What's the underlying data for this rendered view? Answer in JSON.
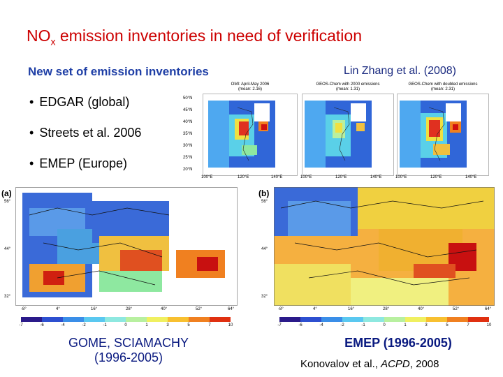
{
  "title": {
    "prefix": "NO",
    "sub": "x",
    "rest": " emission inventories in need of verification"
  },
  "subtitle": "New set of emission inventories",
  "citation": "Lin Zhang et al. (2008)",
  "bullets": [
    "EDGAR (global)",
    "Streets et al. 2006",
    "EMEP (Europe)"
  ],
  "bullet_symbol": "•",
  "top_maps": [
    {
      "title_line1": "OMI: April-May 2006",
      "title_line2": "(mean: 2.16)"
    },
    {
      "title_line1": "GEOS-Chem with 2000 emissions",
      "title_line2": "(mean: 1.31)"
    },
    {
      "title_line1": "GEOS-Chem with doubled emissions",
      "title_line2": "(mean: 2.31)"
    }
  ],
  "top_lat_labels": [
    "50°N",
    "45°N",
    "40°N",
    "35°N",
    "30°N",
    "25°N",
    "20°N"
  ],
  "top_lon_labels": [
    "100°E",
    "120°E",
    "140°E"
  ],
  "panel_a": {
    "label": "(a)",
    "lat_labels": [
      "56°",
      "44°",
      "32°"
    ],
    "lon_labels": [
      "-8°",
      "4°",
      "16°",
      "28°",
      "40°",
      "52°",
      "64°"
    ]
  },
  "panel_b": {
    "label": "(b)",
    "lat_labels": [
      "56°",
      "44°",
      "32°"
    ],
    "lon_labels": [
      "-8°",
      "4°",
      "16°",
      "28°",
      "40°",
      "52°",
      "64°"
    ]
  },
  "colorbar_ticks": [
    "-7",
    "-6",
    "-4",
    "-2",
    "-1",
    "0",
    "1",
    "3",
    "5",
    "7",
    "10"
  ],
  "colorbar_colors": [
    "#2a1a8a",
    "#2d4fd0",
    "#3a8ee8",
    "#5ac8f0",
    "#8ee8e0",
    "#b8f0a0",
    "#f0f060",
    "#f8c030",
    "#f08020",
    "#e03010"
  ],
  "caption_left": {
    "line1": "GOME, SCIAMACHY",
    "line2": "(1996-2005)"
  },
  "caption_right": {
    "line1": "EMEP (1996-2005)",
    "author": "Konovalov et al., ",
    "journal": "ACPD",
    "year": ", 2008"
  },
  "colors": {
    "title": "#cc0000",
    "subtitle": "#1f3fa6",
    "caption": "#0a1a80"
  }
}
